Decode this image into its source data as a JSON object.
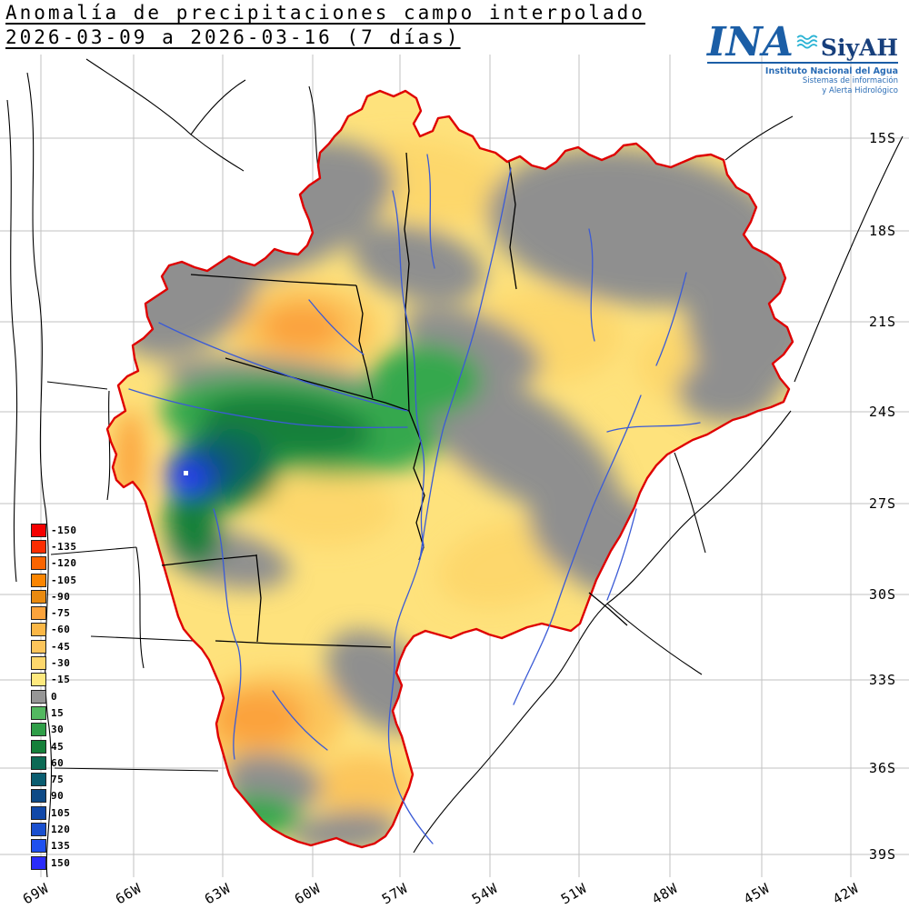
{
  "title": {
    "line1": "Anomalía de precipitaciones campo interpolado",
    "line2": "2026-03-09 a 2026-03-16 (7 días)"
  },
  "logo": {
    "ina": "INA",
    "siyah": "SiyAH",
    "subtitle": "Instituto Nacional del Agua",
    "tagline1": "Sistemas de información",
    "tagline2": "y Alerta Hidrológico",
    "ina_color": "#1b5ea6",
    "siyah_color": "#173f7c",
    "wave_color": "#2ab3d4",
    "text_color": "#2a6cb5"
  },
  "axes": {
    "latitude_labels": [
      "15S",
      "18S",
      "21S",
      "24S",
      "27S",
      "30S",
      "33S",
      "36S",
      "39S"
    ],
    "longitude_labels": [
      "69W",
      "66W",
      "63W",
      "60W",
      "57W",
      "54W",
      "51W",
      "48W",
      "45W",
      "42W"
    ]
  },
  "legend": {
    "entries": [
      {
        "value": "-150",
        "color": "#f50000"
      },
      {
        "value": "-135",
        "color": "#fb2d00"
      },
      {
        "value": "-120",
        "color": "#fa6400"
      },
      {
        "value": "-105",
        "color": "#fb8500"
      },
      {
        "value": "-90",
        "color": "#e98a10"
      },
      {
        "value": "-75",
        "color": "#fba33c"
      },
      {
        "value": "-60",
        "color": "#fbb746"
      },
      {
        "value": "-45",
        "color": "#fcc55b"
      },
      {
        "value": "-30",
        "color": "#fdd76c"
      },
      {
        "value": "-15",
        "color": "#fee97e"
      },
      {
        "value": "0",
        "color": "#969696"
      },
      {
        "value": "15",
        "color": "#53b860"
      },
      {
        "value": "30",
        "color": "#2f9e48"
      },
      {
        "value": "45",
        "color": "#15803a"
      },
      {
        "value": "60",
        "color": "#0c6a55"
      },
      {
        "value": "75",
        "color": "#0b5d70"
      },
      {
        "value": "90",
        "color": "#0e4a86"
      },
      {
        "value": "105",
        "color": "#1148a8"
      },
      {
        "value": "120",
        "color": "#1a50cf"
      },
      {
        "value": "135",
        "color": "#1e50ef"
      },
      {
        "value": "150",
        "color": "#2a2cfb"
      }
    ]
  },
  "map": {
    "basin_outline_color": "#df0000",
    "river_color": "#3b5bd6",
    "grid_color": "#c2c2c2",
    "border_color": "#000000",
    "base_fill": "#fee27c",
    "station_marker": "white-dot"
  }
}
